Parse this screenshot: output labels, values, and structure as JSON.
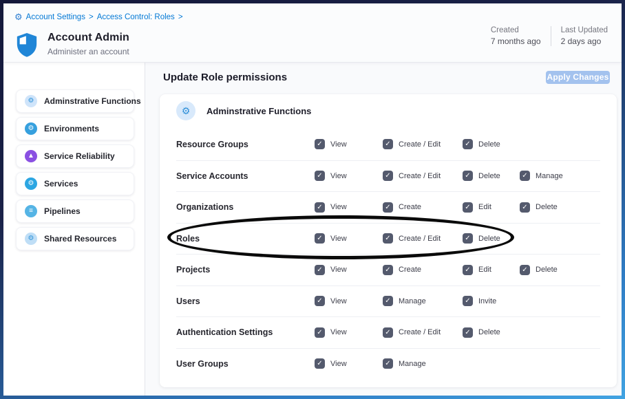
{
  "colors": {
    "accent_blue": "#0278d5",
    "apply_button_bg": "#a3c2ee",
    "checkbox_bg": "#545a6d",
    "annotation": "#0a0a0a"
  },
  "breadcrumb": {
    "icon": "gear-icon",
    "items": [
      "Account Settings",
      "Access Control: Roles"
    ],
    "separator": ">"
  },
  "header": {
    "icon": "shield-icon",
    "title": "Account Admin",
    "subtitle": "Administer an account",
    "meta": [
      {
        "label": "Created",
        "value": "7 months ago"
      },
      {
        "label": "Last Updated",
        "value": "2 days ago"
      }
    ]
  },
  "toolbar": {
    "title": "Update Role permissions",
    "apply_label": "Apply Changes"
  },
  "sidebar": {
    "items": [
      {
        "label": "Adminstrative Functions",
        "icon": "gear-icon",
        "glyph": "⚙",
        "icon_bg": "#cfe4fa",
        "icon_fg": "#2f93d9"
      },
      {
        "label": "Environments",
        "icon": "environments-icon",
        "glyph": "⚙",
        "icon_bg": "#36a0de",
        "icon_fg": "#ffffff"
      },
      {
        "label": "Service Reliability",
        "icon": "service-reliability-icon",
        "glyph": "▲",
        "icon_bg": "#8a50e2",
        "icon_fg": "#ffffff"
      },
      {
        "label": "Services",
        "icon": "services-icon",
        "glyph": "⚙",
        "icon_bg": "#2ca6e2",
        "icon_fg": "#ffffff"
      },
      {
        "label": "Pipelines",
        "icon": "pipelines-icon",
        "glyph": "≡",
        "icon_bg": "#55b4e5",
        "icon_fg": "#ffffff"
      },
      {
        "label": "Shared Resources",
        "icon": "shared-resources-icon",
        "glyph": "⚙",
        "icon_bg": "#bfdef6",
        "icon_fg": "#2f93d9"
      }
    ]
  },
  "permissions": {
    "section_icon": "gear-icon",
    "section_title": "Adminstrative Functions",
    "all_checked": true,
    "check_glyph": "✓",
    "rows": [
      {
        "resource": "Resource Groups",
        "perms": [
          "View",
          "Create / Edit",
          "Delete"
        ]
      },
      {
        "resource": "Service Accounts",
        "perms": [
          "View",
          "Create / Edit",
          "Delete",
          "Manage"
        ]
      },
      {
        "resource": "Organizations",
        "perms": [
          "View",
          "Create",
          "Edit",
          "Delete"
        ]
      },
      {
        "resource": "Roles",
        "perms": [
          "View",
          "Create / Edit",
          "Delete"
        ],
        "annotated": true
      },
      {
        "resource": "Projects",
        "perms": [
          "View",
          "Create",
          "Edit",
          "Delete"
        ]
      },
      {
        "resource": "Users",
        "perms": [
          "View",
          "Manage",
          "Invite"
        ]
      },
      {
        "resource": "Authentication Settings",
        "perms": [
          "View",
          "Create / Edit",
          "Delete"
        ]
      },
      {
        "resource": "User Groups",
        "perms": [
          "View",
          "Manage"
        ]
      }
    ]
  },
  "annotation": {
    "shape": "ellipse",
    "target": "Roles row",
    "color": "#0a0a0a"
  }
}
